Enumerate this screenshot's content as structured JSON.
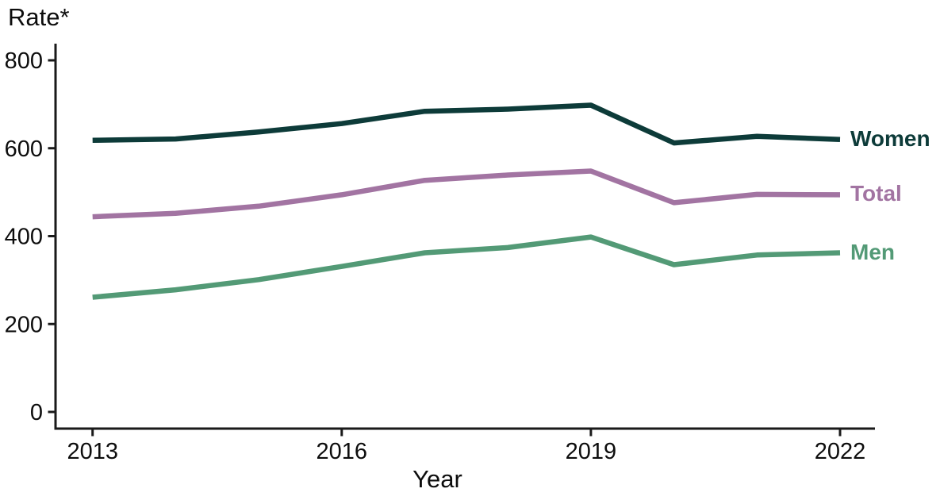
{
  "chart": {
    "y_axis_title": "Rate*",
    "x_axis_title": "Year",
    "axis_color": "#1a1a1a",
    "background_color": "#ffffff"
  },
  "chart_data": {
    "type": "line",
    "title": "",
    "xlabel": "Year",
    "ylabel": "Rate*",
    "x": [
      2013,
      2014,
      2015,
      2016,
      2017,
      2018,
      2019,
      2020,
      2021,
      2022
    ],
    "series": [
      {
        "name": "Women",
        "color": "#0d3b39",
        "values": [
          618,
          621,
          637,
          656,
          684,
          689,
          698,
          612,
          627,
          620
        ]
      },
      {
        "name": "Total",
        "color": "#a274a2",
        "values": [
          444,
          452,
          468,
          494,
          527,
          539,
          548,
          476,
          495,
          494
        ]
      },
      {
        "name": "Men",
        "color": "#539a76",
        "values": [
          261,
          278,
          301,
          331,
          362,
          374,
          398,
          335,
          357,
          362
        ]
      }
    ],
    "ylim": [
      0,
      800
    ],
    "y_ticks": [
      0,
      200,
      400,
      600,
      800
    ],
    "x_ticks": [
      2013,
      2016,
      2019,
      2022
    ],
    "grid": false,
    "legend_position": "labels-at-line-ends-right"
  }
}
